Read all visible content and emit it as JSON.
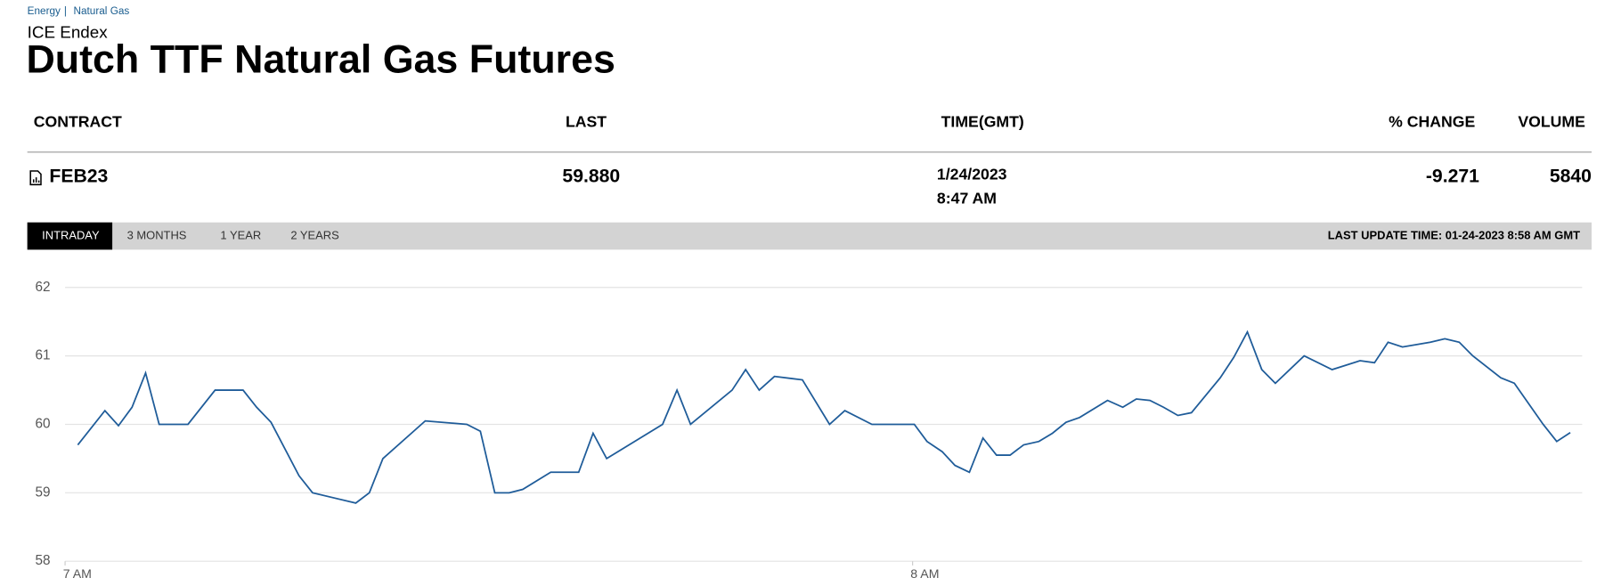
{
  "breadcrumb": [
    "Energy",
    "Natural Gas"
  ],
  "exchange": "ICE Endex",
  "title": "Dutch TTF Natural Gas Futures",
  "table": {
    "headers": [
      "CONTRACT",
      "LAST",
      "TIME(GMT)",
      "% CHANGE",
      "VOLUME"
    ],
    "row": {
      "contract": "FEB23",
      "last": "59.880",
      "date": "1/24/2023",
      "time": "8:47 AM",
      "change": "-9.271",
      "volume": "5840"
    }
  },
  "tabs": [
    "INTRADAY",
    "3 MONTHS",
    "1 YEAR",
    "2 YEARS"
  ],
  "active_tab": 0,
  "last_update": "LAST UPDATE TIME: 01-24-2023 8:58 AM GMT",
  "chart_data": {
    "type": "line",
    "color": "#1f5c99",
    "grid": true,
    "x": [
      7.015,
      7.047,
      7.063,
      7.079,
      7.095,
      7.111,
      7.145,
      7.177,
      7.21,
      7.226,
      7.243,
      7.276,
      7.292,
      7.343,
      7.359,
      7.375,
      7.425,
      7.474,
      7.49,
      7.507,
      7.524,
      7.54,
      7.573,
      7.606,
      7.623,
      7.639,
      7.705,
      7.722,
      7.738,
      7.787,
      7.803,
      7.819,
      7.837,
      7.87,
      7.902,
      7.92,
      7.952,
      8.002,
      8.017,
      8.035,
      8.05,
      8.067,
      8.083,
      8.099,
      8.115,
      8.131,
      8.149,
      8.165,
      8.181,
      8.197,
      8.23,
      8.248,
      8.264,
      8.28,
      8.296,
      8.313,
      8.329,
      8.363,
      8.379,
      8.395,
      8.412,
      8.428,
      8.462,
      8.495,
      8.528,
      8.545,
      8.561,
      8.578,
      8.611,
      8.628,
      8.645,
      8.661,
      8.694,
      8.71,
      8.744,
      8.76,
      8.776
    ],
    "values": [
      59.7,
      60.2,
      59.98,
      60.25,
      60.75,
      60.0,
      60.0,
      60.5,
      60.5,
      60.25,
      60.03,
      59.25,
      59.0,
      58.85,
      59.0,
      59.5,
      60.05,
      60.0,
      59.9,
      59.0,
      59.0,
      59.05,
      59.3,
      59.3,
      59.87,
      59.5,
      60.0,
      60.5,
      60.0,
      60.5,
      60.8,
      60.5,
      60.7,
      60.65,
      60.0,
      60.2,
      60.0,
      60.0,
      59.75,
      59.6,
      59.4,
      59.3,
      59.8,
      59.55,
      59.55,
      59.7,
      59.75,
      59.87,
      60.03,
      60.1,
      60.35,
      60.25,
      60.37,
      60.35,
      60.25,
      60.13,
      60.17,
      60.68,
      60.98,
      61.35,
      60.8,
      60.6,
      61.0,
      60.8,
      60.93,
      60.9,
      61.2,
      61.13,
      61.2,
      61.25,
      61.2,
      61.0,
      60.68,
      60.6,
      60.0,
      59.75,
      59.88
    ],
    "xlim": [
      7,
      8.79
    ],
    "xticks": [
      {
        "value": 7,
        "label": "7 AM"
      },
      {
        "value": 8,
        "label": "8 AM"
      }
    ],
    "ylim": [
      58,
      62
    ],
    "yticks": [
      58,
      59,
      60,
      61,
      62
    ]
  }
}
